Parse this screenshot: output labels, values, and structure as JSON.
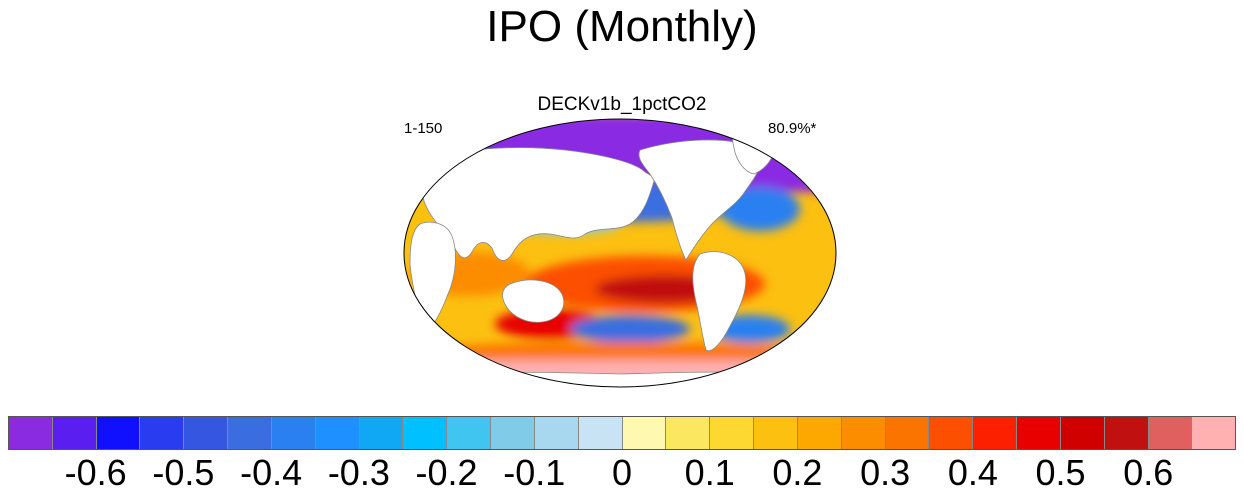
{
  "title": "IPO (Monthly)",
  "subtitle": "DECKv1b_1pctCO2",
  "left_label": "1-150",
  "right_label": "80.9%*",
  "colorbar": {
    "colors": [
      "#8a2be2",
      "#5a1ff0",
      "#1010ff",
      "#2a3cf0",
      "#3556e0",
      "#3a6ee0",
      "#2a80f0",
      "#1e90ff",
      "#10a8f4",
      "#00c0ff",
      "#40c4f0",
      "#80cce8",
      "#a8d8f0",
      "#c8e4f4",
      "#fff8b0",
      "#fce860",
      "#fcd830",
      "#fcc010",
      "#fca800",
      "#fc8c00",
      "#fc7400",
      "#fc5000",
      "#fc2000",
      "#e80000",
      "#d00000",
      "#c01010",
      "#e06060",
      "#ffb0b0"
    ],
    "tick_labels": [
      "-0.6",
      "-0.5",
      "-0.4",
      "-0.3",
      "-0.2",
      "-0.1",
      "0",
      "0.1",
      "0.2",
      "0.3",
      "0.4",
      "0.5",
      "0.6"
    ]
  },
  "map_regions": {
    "ocean_base": "#fcc010",
    "arctic": "#8a2be2",
    "antarctic": "#ffb0b0",
    "land": "#ffffff",
    "warm_tropics": "#fc5000",
    "core": "#c01010",
    "cool": "#3a6ee0",
    "light_cool": "#80cce8"
  }
}
